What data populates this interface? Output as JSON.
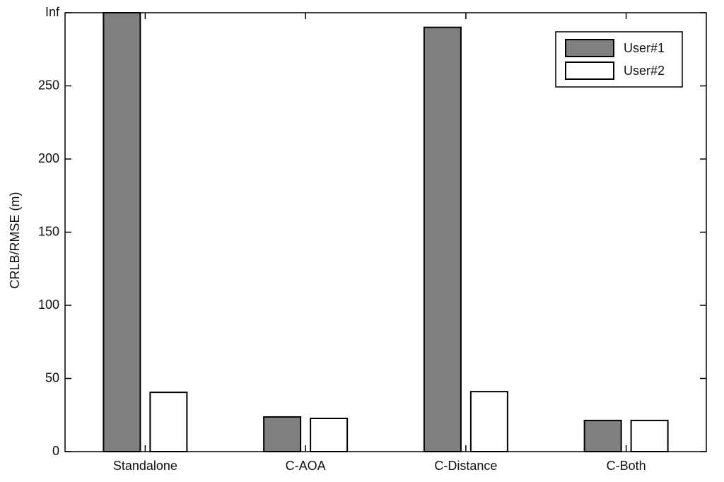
{
  "chart_data": {
    "type": "bar",
    "y_label": "CRLB/RMSE (m)",
    "categories": [
      "Standalone",
      "C-AOA",
      "C-Distance",
      "C-Both"
    ],
    "series": [
      {
        "name": "User#1",
        "color": "#808080",
        "values": [
          300,
          23.7,
          290,
          21.3
        ]
      },
      {
        "name": "User#2",
        "color": "#ffffff",
        "values": [
          40.5,
          22.7,
          41,
          21.3
        ]
      }
    ],
    "ylim": [
      0,
      300
    ],
    "yticks": [
      0,
      50,
      100,
      150,
      200,
      250,
      {
        "value": 300,
        "label": "Inf"
      }
    ],
    "legend": "upper right"
  }
}
